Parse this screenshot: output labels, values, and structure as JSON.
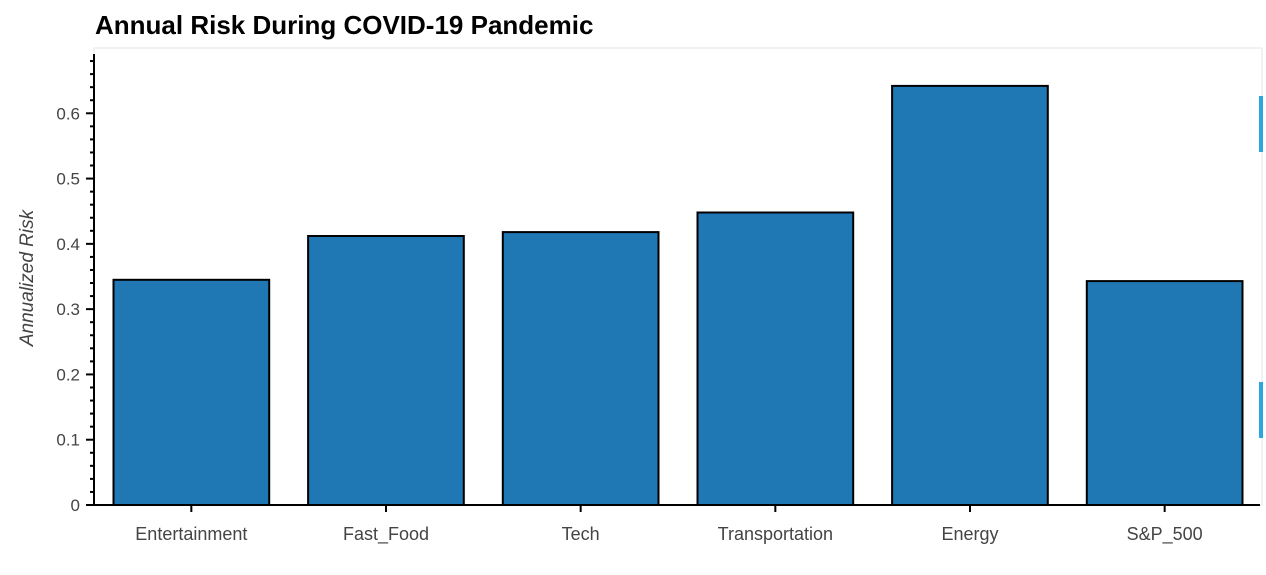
{
  "chart_data": {
    "type": "bar",
    "title": "Annual Risk During COVID-19 Pandemic",
    "xlabel": "",
    "ylabel": "Annualized Risk",
    "categories": [
      "Entertainment",
      "Fast_Food",
      "Tech",
      "Transportation",
      "Energy",
      "S&P_500"
    ],
    "values": [
      0.345,
      0.412,
      0.418,
      0.448,
      0.642,
      0.343
    ],
    "ylim": [
      0,
      0.7
    ],
    "yticks": [
      "0",
      "0.1",
      "0.2",
      "0.3",
      "0.4",
      "0.5",
      "0.6"
    ],
    "grid": false,
    "legend": "none",
    "bar_color": "#1f77b4",
    "bar_edge_color": "#000000"
  }
}
